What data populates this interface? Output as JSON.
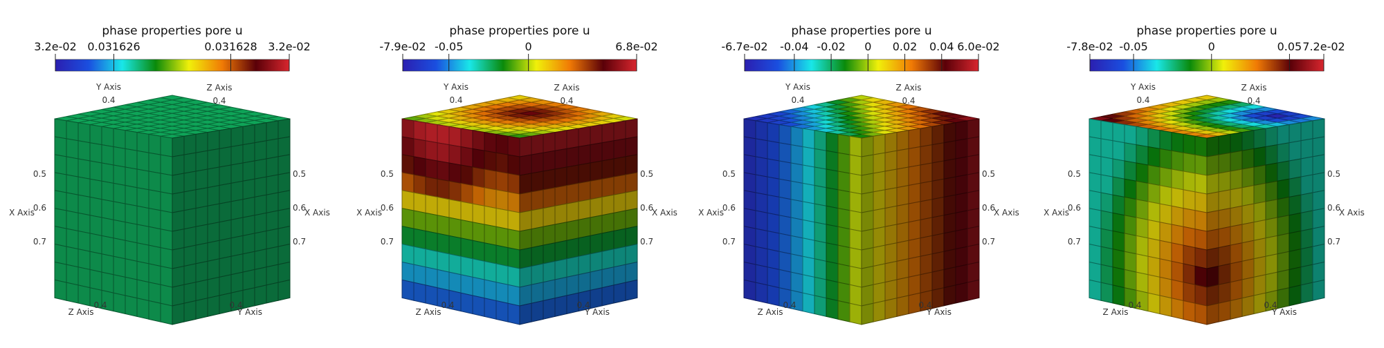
{
  "chart_data": [
    {
      "type": "heatmap",
      "subtype": "3d-voxel-cube",
      "colorbar": {
        "title": "phase  properties  pore  u",
        "range": [
          0.031625,
          0.031629
        ],
        "ticks": [
          {
            "value": 0.031625,
            "label": "3.2e-02"
          },
          {
            "value": 0.031626,
            "label": "0.031626"
          },
          {
            "value": 0.031628,
            "label": "0.031628"
          },
          {
            "value": 0.031629,
            "label": "3.2e-02"
          }
        ],
        "colormap": [
          "#2b1fb0",
          "#1a4fe0",
          "#19e7e8",
          "#0a8a0a",
          "#f0f00a",
          "#f07a05",
          "#5a0008",
          "#d8262e"
        ]
      },
      "axes": {
        "x_axis": {
          "label": "X Axis",
          "ticks": [
            "0.5",
            "0.6",
            "0.7"
          ]
        },
        "y_axis_top": {
          "label": "Y Axis",
          "tick": "0.4"
        },
        "z_axis_top": {
          "label": "Z Axis",
          "tick": "0.4"
        },
        "right_axis": {
          "label": "X Axis",
          "ticks": [
            "0.5",
            "0.6",
            "0.7"
          ]
        },
        "z_axis_bottom": {
          "label": "Z Axis",
          "tick": "0.4"
        },
        "y_axis_bottom": {
          "label": "Y Axis",
          "tick": "0.4"
        }
      },
      "field": "uniform",
      "field_value": 0.0316265
    },
    {
      "type": "heatmap",
      "subtype": "3d-voxel-cube",
      "colorbar": {
        "title": "phase  properties  pore  u",
        "range": [
          -0.079,
          0.068
        ],
        "ticks": [
          {
            "value": -0.079,
            "label": "-7.9e-02"
          },
          {
            "value": -0.05,
            "label": "-0.05"
          },
          {
            "value": 0,
            "label": "0"
          },
          {
            "value": 0.068,
            "label": "6.8e-02"
          }
        ],
        "colormap": [
          "#2b1fb0",
          "#1a4fe0",
          "#19e7e8",
          "#0a8a0a",
          "#f0f00a",
          "#f07a05",
          "#5a0008",
          "#d8262e"
        ]
      },
      "axes": {
        "x_axis": {
          "label": "X Axis",
          "ticks": [
            "0.5",
            "0.6",
            "0.7"
          ]
        },
        "y_axis_top": {
          "label": "Y Axis",
          "tick": "0.4"
        },
        "z_axis_top": {
          "label": "Z Axis",
          "tick": "0.4"
        },
        "right_axis": {
          "label": "X Axis",
          "ticks": [
            "0.5",
            "0.6",
            "0.7"
          ]
        },
        "z_axis_bottom": {
          "label": "Z Axis",
          "tick": "0.4"
        },
        "y_axis_bottom": {
          "label": "Y Axis",
          "tick": "0.4"
        }
      },
      "field": "vertical-bands",
      "field_stops": [
        0.06,
        0.05,
        0.03,
        0.0,
        -0.02,
        -0.04,
        -0.055
      ],
      "top_value": 0.05
    },
    {
      "type": "heatmap",
      "subtype": "3d-voxel-cube",
      "colorbar": {
        "title": "phase  properties  pore  u",
        "range": [
          -0.067,
          0.06
        ],
        "ticks": [
          {
            "value": -0.067,
            "label": "-6.7e-02"
          },
          {
            "value": -0.04,
            "label": "-0.04"
          },
          {
            "value": -0.02,
            "label": "-0.02"
          },
          {
            "value": 0,
            "label": "0"
          },
          {
            "value": 0.02,
            "label": "0.02"
          },
          {
            "value": 0.04,
            "label": "0.04"
          },
          {
            "value": 0.06,
            "label": "6.0e-02"
          }
        ],
        "colormap": [
          "#2b1fb0",
          "#1a4fe0",
          "#19e7e8",
          "#0a8a0a",
          "#f0f00a",
          "#f07a05",
          "#5a0008",
          "#d8262e"
        ]
      },
      "axes": {
        "x_axis": {
          "label": "X Axis",
          "ticks": [
            "0.5",
            "0.6",
            "0.7"
          ]
        },
        "y_axis_top": {
          "label": "Y Axis",
          "tick": "0.4"
        },
        "z_axis_top": {
          "label": "Z Axis",
          "tick": "0.4"
        },
        "right_axis": {
          "label": "X Axis",
          "ticks": [
            "0.5",
            "0.6",
            "0.7"
          ]
        },
        "z_axis_bottom": {
          "label": "Z Axis",
          "tick": "0.4"
        },
        "y_axis_bottom": {
          "label": "Y Axis",
          "tick": "0.4"
        }
      },
      "field": "horizontal-bands",
      "field_stops": [
        -0.06,
        -0.05,
        -0.035,
        -0.015,
        0.005,
        0.02,
        0.035,
        0.05
      ],
      "right_face_value": 0.045
    },
    {
      "type": "heatmap",
      "subtype": "3d-voxel-cube",
      "colorbar": {
        "title": "phase  properties  pore  u",
        "range": [
          -0.078,
          0.072
        ],
        "ticks": [
          {
            "value": -0.078,
            "label": "-7.8e-02"
          },
          {
            "value": -0.05,
            "label": "-0.05"
          },
          {
            "value": 0,
            "label": "0"
          },
          {
            "value": 0.05,
            "label": "0.05"
          },
          {
            "value": 0.072,
            "label": "7.2e-02"
          }
        ],
        "colormap": [
          "#2b1fb0",
          "#1a4fe0",
          "#19e7e8",
          "#0a8a0a",
          "#f0f00a",
          "#f07a05",
          "#5a0008",
          "#d8262e"
        ]
      },
      "axes": {
        "x_axis": {
          "label": "X Axis",
          "ticks": [
            "0.5",
            "0.6",
            "0.7"
          ]
        },
        "y_axis_top": {
          "label": "Y Axis",
          "tick": "0.4"
        },
        "z_axis_top": {
          "label": "Z Axis",
          "tick": "0.4"
        },
        "right_axis": {
          "label": "X Axis",
          "ticks": [
            "0.5",
            "0.6",
            "0.7"
          ]
        },
        "z_axis_bottom": {
          "label": "Z Axis",
          "tick": "0.4"
        },
        "y_axis_bottom": {
          "label": "Y Axis",
          "tick": "0.4"
        }
      },
      "field": "radial",
      "field_stops": [
        0.05,
        0.03,
        0.01,
        -0.01,
        -0.03
      ],
      "top_center_value": -0.075
    }
  ]
}
